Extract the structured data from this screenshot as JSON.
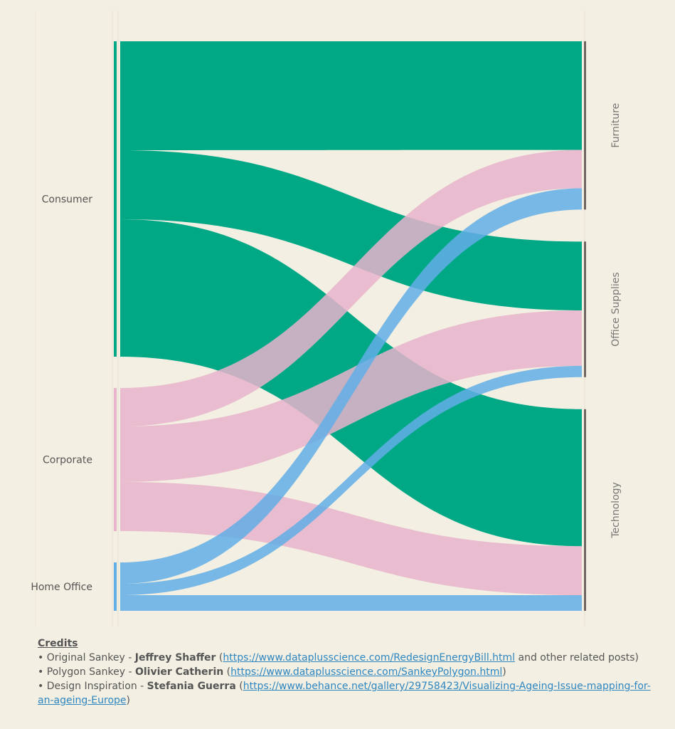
{
  "colors": {
    "Consumer": "#00a886",
    "Corporate": "#e8b3cb",
    "Home Office": "#62aee6",
    "category_bar": "#6f6560",
    "background": "#f3efe2"
  },
  "chart_data": {
    "type": "sankey",
    "sources": [
      "Consumer",
      "Corporate",
      "Home Office"
    ],
    "targets": [
      "Furniture",
      "Office Supplies",
      "Technology"
    ],
    "links": [
      {
        "source": "Consumer",
        "target": "Furniture",
        "value": 153
      },
      {
        "source": "Consumer",
        "target": "Office Supplies",
        "value": 97
      },
      {
        "source": "Consumer",
        "target": "Technology",
        "value": 193
      },
      {
        "source": "Corporate",
        "target": "Furniture",
        "value": 54
      },
      {
        "source": "Corporate",
        "target": "Office Supplies",
        "value": 78
      },
      {
        "source": "Corporate",
        "target": "Technology",
        "value": 69
      },
      {
        "source": "Home Office",
        "target": "Furniture",
        "value": 30
      },
      {
        "source": "Home Office",
        "target": "Office Supplies",
        "value": 16
      },
      {
        "source": "Home Office",
        "target": "Technology",
        "value": 22
      }
    ]
  },
  "credits": {
    "title": "Credits",
    "items": [
      {
        "prefix": "• Original Sankey - ",
        "name": "Jeffrey Shaffer",
        "open": " (",
        "link": "https://www.dataplusscience.com/RedesignEnergyBill.html",
        "suffix": " and other related posts)"
      },
      {
        "prefix": "• Polygon Sankey - ",
        "name": "Olivier Catherin",
        "open": " (",
        "link": "https://www.dataplusscience.com/SankeyPolygon.html",
        "suffix": ")"
      },
      {
        "prefix": "• Design Inspiration - ",
        "name": "Stefania Guerra",
        "open": " (",
        "link": "https://www.behance.net/gallery/29758423/Visualizing-Ageing-Issue-mapping-for-an-ageing-Europe",
        "suffix": ")"
      }
    ]
  }
}
